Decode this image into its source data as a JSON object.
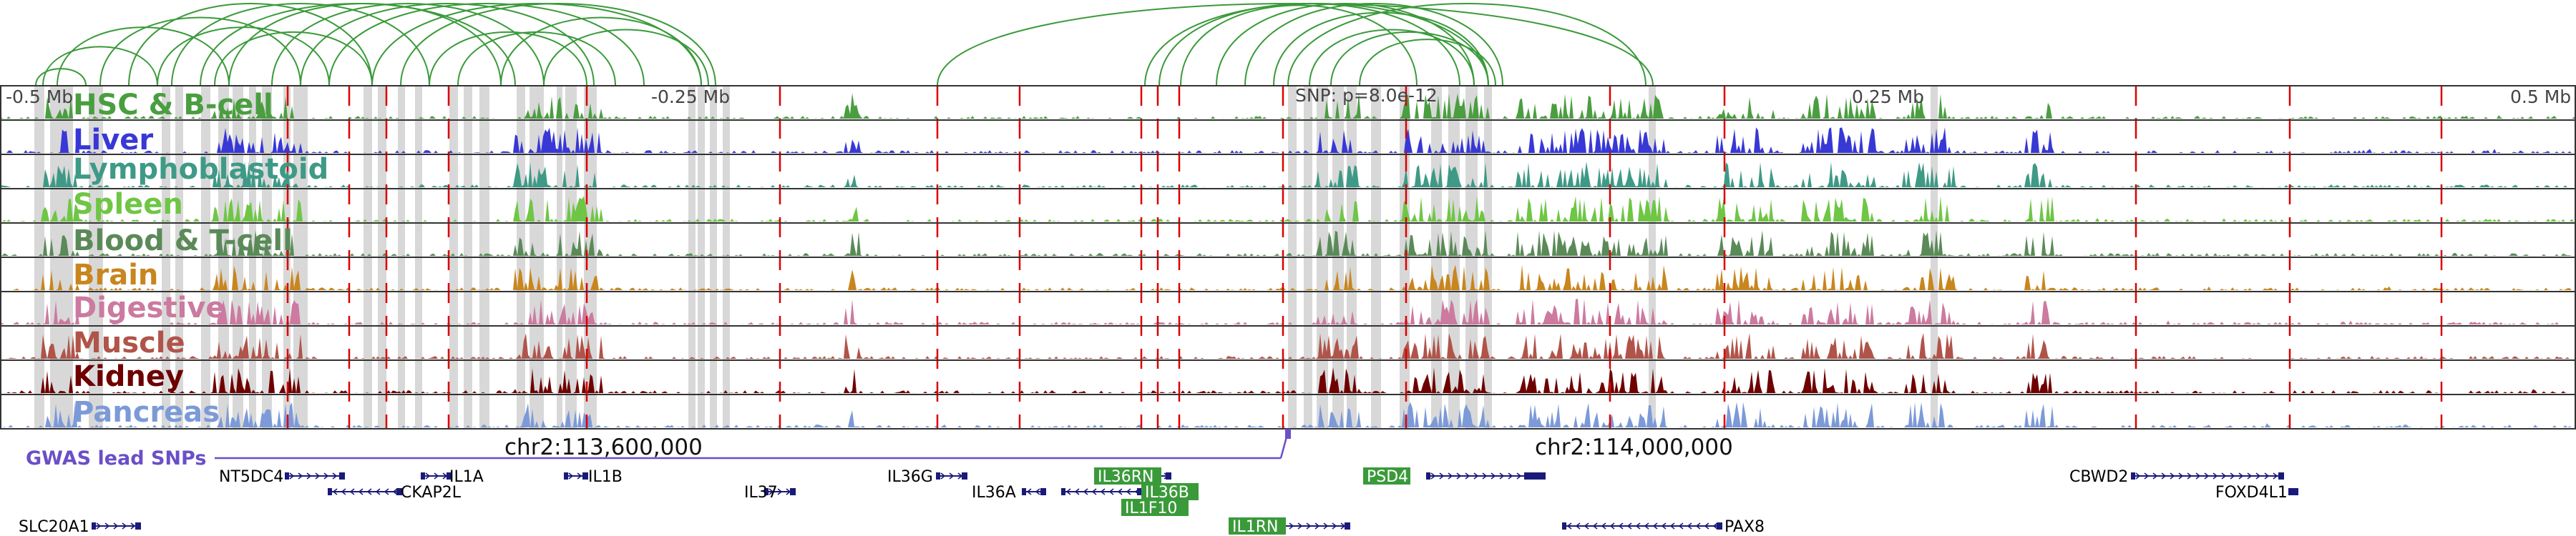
{
  "axis": {
    "ticks": [
      {
        "label": "-0.5 Mb",
        "offset": -0.5
      },
      {
        "label": "-0.25 Mb",
        "offset": -0.25
      },
      {
        "label": "0.25 Mb",
        "offset": 0.25
      },
      {
        "label": "0.5 Mb",
        "offset": 0.5
      }
    ],
    "snp_label": "SNP: p=8.0e-12",
    "snp_offset": 0.0
  },
  "colors": {
    "arc": "#3a9a3a",
    "red_line": "#dd0000",
    "grey_band": "#d8d8d8",
    "border": "#333333",
    "gwas": "#6a4fc8",
    "gene": "#1a1a7a",
    "gene_highlight": "#3a9a3a"
  },
  "tracks": [
    {
      "label": "HSC & B-cell",
      "color": "#4a9e40"
    },
    {
      "label": "Liver",
      "color": "#3838d6"
    },
    {
      "label": "Lymphoblastoid",
      "color": "#3e9a86"
    },
    {
      "label": "Spleen",
      "color": "#6fc645"
    },
    {
      "label": "Blood & T-cell",
      "color": "#5a8a58"
    },
    {
      "label": "Brain",
      "color": "#c8861e"
    },
    {
      "label": "Digestive",
      "color": "#cc7aa0"
    },
    {
      "label": "Muscle",
      "color": "#b0544a"
    },
    {
      "label": "Kidney",
      "color": "#6e0000"
    },
    {
      "label": "Pancreas",
      "color": "#7c9ad8"
    }
  ],
  "gwas": {
    "label": "GWAS lead SNPs"
  },
  "positions": [
    {
      "label": "chr2:113,600,000"
    },
    {
      "label": "chr2:114,000,000"
    }
  ],
  "genes": [
    {
      "name": "NT5DC4",
      "highlight": false
    },
    {
      "name": "IL1A",
      "highlight": false
    },
    {
      "name": "IL1B",
      "highlight": false
    },
    {
      "name": "CKAP2L",
      "highlight": false
    },
    {
      "name": "IL37",
      "highlight": false
    },
    {
      "name": "IL36G",
      "highlight": false
    },
    {
      "name": "IL36A",
      "highlight": false
    },
    {
      "name": "IL36RN",
      "highlight": true
    },
    {
      "name": "IL36B",
      "highlight": true
    },
    {
      "name": "IL1F10",
      "highlight": true
    },
    {
      "name": "IL1RN",
      "highlight": true
    },
    {
      "name": "PSD4",
      "highlight": true
    },
    {
      "name": "PAX8",
      "highlight": false
    },
    {
      "name": "CBWD2",
      "highlight": false
    },
    {
      "name": "FOXD4L1",
      "highlight": false
    },
    {
      "name": "SLC20A1",
      "highlight": false
    }
  ]
}
